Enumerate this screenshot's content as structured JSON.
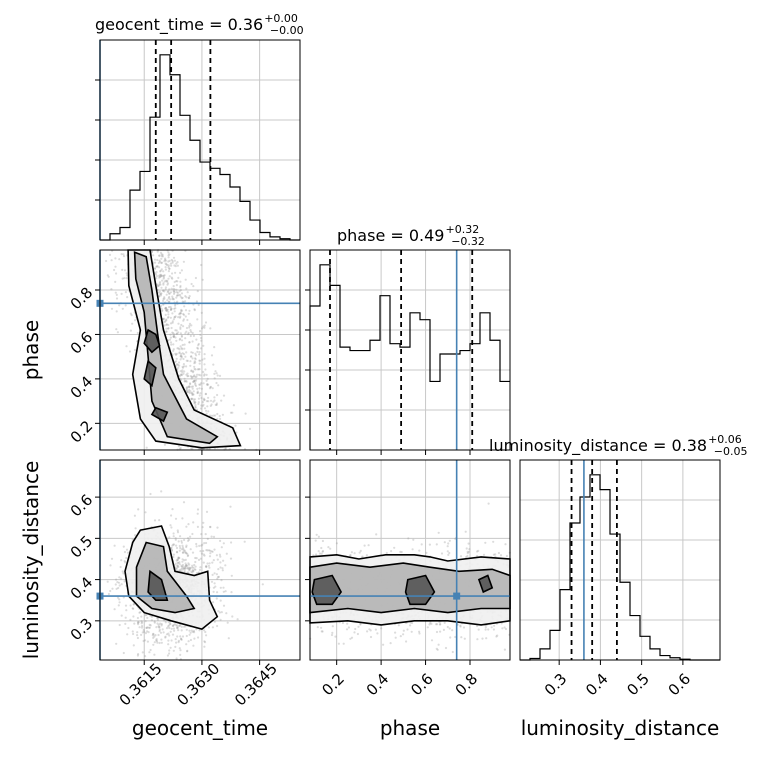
{
  "chart_data": {
    "type": "corner",
    "colors": {
      "truth": "#4682b4",
      "hist": "#000000",
      "grid": "#c8c8c8",
      "points": "#9a9a9a",
      "quantile": "#000000"
    },
    "grid": true,
    "axes": [
      {
        "name": "geocent_time",
        "label": "geocent_time",
        "range": [
          0.36035,
          0.36555
        ],
        "ticks": [
          0.3615,
          0.363,
          0.3645
        ],
        "tick_labels": [
          "0.3615",
          "0.3630",
          "0.3645"
        ],
        "truth": 0.36035
      },
      {
        "name": "phase",
        "label": "phase",
        "range": [
          0.08,
          0.98
        ],
        "ticks": [
          0.2,
          0.4,
          0.6,
          0.8
        ],
        "tick_labels": [
          "0.2",
          "0.4",
          "0.6",
          "0.8"
        ],
        "truth": 0.74
      },
      {
        "name": "luminosity_distance",
        "label": "luminosity_distance",
        "range": [
          0.205,
          0.69
        ],
        "ticks": [
          0.3,
          0.4,
          0.5,
          0.6
        ],
        "tick_labels": [
          "0.3",
          "0.4",
          "0.5",
          "0.6"
        ],
        "truth": 0.36
      }
    ],
    "titles": [
      {
        "base": "geocent_time = 0.36",
        "sup": "+0.00",
        "sub": "−0.00"
      },
      {
        "base": "phase = 0.49",
        "sup": "+0.32",
        "sub": "−0.32"
      },
      {
        "base": "luminosity_distance = 0.38",
        "sup": "+0.06",
        "sub": "−0.05"
      }
    ],
    "histograms": [
      {
        "param": "geocent_time",
        "bin_start": 0.36035,
        "bin_width": 0.00026,
        "counts": [
          0,
          0.1,
          0.2,
          0.8,
          1.1,
          1.97,
          2.97,
          2.65,
          2.0,
          1.6,
          1.25,
          1.15,
          1.05,
          0.85,
          0.62,
          0.32,
          0.12,
          0.05,
          0.02,
          0
        ],
        "quantiles": [
          0.3618,
          0.3622,
          0.36322
        ]
      },
      {
        "param": "phase",
        "bin_start": 0.08,
        "bin_width": 0.045,
        "counts": [
          2.1,
          2.7,
          2.4,
          1.5,
          1.45,
          1.45,
          1.6,
          2.25,
          1.55,
          1.5,
          2.0,
          1.9,
          1.0,
          1.4,
          1.4,
          1.45,
          1.55,
          2.0,
          1.6,
          1.0
        ],
        "quantiles": [
          0.17,
          0.49,
          0.81
        ]
      },
      {
        "param": "luminosity_distance",
        "bin_start": 0.205,
        "bin_width": 0.02425,
        "counts": [
          0,
          0.02,
          0.15,
          0.4,
          0.95,
          1.85,
          2.2,
          2.5,
          2.3,
          1.7,
          1.05,
          0.6,
          0.32,
          0.15,
          0.06,
          0.03,
          0.01,
          0,
          0,
          0
        ],
        "quantiles": [
          0.33,
          0.38,
          0.44
        ]
      }
    ]
  }
}
